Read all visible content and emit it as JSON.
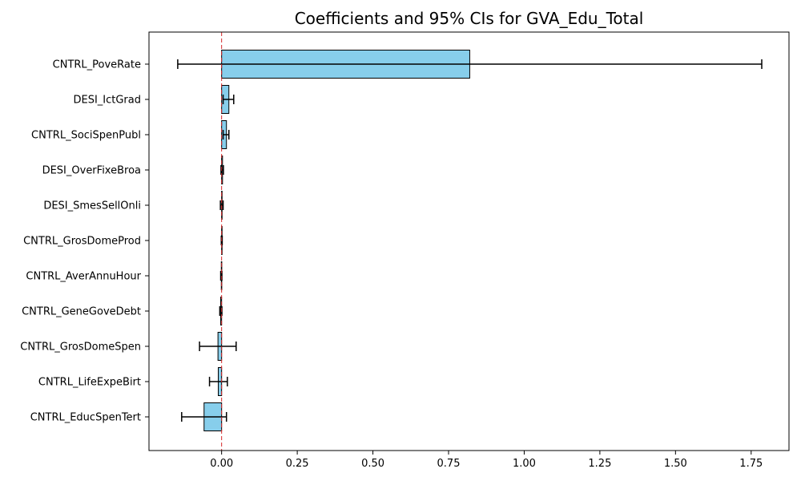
{
  "chart_data": {
    "type": "bar",
    "orientation": "horizontal",
    "title": "Coefficients and 95% CIs for GVA_Edu_Total",
    "xlabel": "",
    "ylabel": "",
    "xlim": [
      -0.24,
      1.875
    ],
    "xticks": [
      0.0,
      0.25,
      0.5,
      0.75,
      1.0,
      1.25,
      1.5,
      1.75
    ],
    "xtick_labels": [
      "0.00",
      "0.25",
      "0.50",
      "0.75",
      "1.00",
      "1.25",
      "1.50",
      "1.75"
    ],
    "reference_line": {
      "x": 0,
      "style": "dashed",
      "color": "#d62728"
    },
    "categories": [
      "CNTRL_PoveRate",
      "DESI_IctGrad",
      "CNTRL_SociSpenPubl",
      "DESI_OverFixeBroa",
      "DESI_SmesSellOnli",
      "CNTRL_GrosDomeProd",
      "CNTRL_AverAnnuHour",
      "CNTRL_GeneGoveDebt",
      "CNTRL_GrosDomeSpen",
      "CNTRL_LifeExpeBirt",
      "CNTRL_EducSpenTert"
    ],
    "series": [
      {
        "values": [
          0.82,
          0.024,
          0.016,
          0.003,
          0.001,
          0.0005,
          -0.001,
          -0.003,
          -0.012,
          -0.011,
          -0.058
        ],
        "ci_lower": [
          -0.145,
          0.005,
          0.005,
          -0.002,
          -0.004,
          -0.001,
          -0.003,
          -0.006,
          -0.073,
          -0.04,
          -0.132
        ],
        "ci_upper": [
          1.785,
          0.04,
          0.024,
          0.006,
          0.005,
          0.002,
          0.001,
          0.001,
          0.048,
          0.019,
          0.016
        ]
      }
    ],
    "colors": {
      "bar_fill": "#87ceeb",
      "bar_edge": "#000000",
      "error_bar": "#000000"
    },
    "grid": false,
    "legend": "none"
  }
}
